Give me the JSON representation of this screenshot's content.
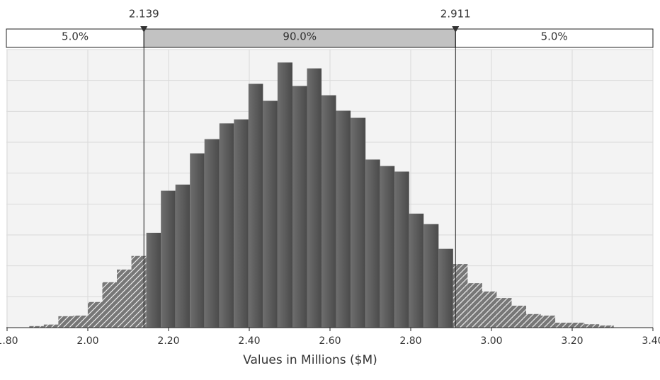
{
  "chart_data": {
    "type": "histogram",
    "xlabel": "Values in Millions ($M)",
    "bins": [
      1.855,
      1.891,
      1.927,
      1.964,
      2.0,
      2.036,
      2.072,
      2.108,
      2.145,
      2.181,
      2.217,
      2.253,
      2.289,
      2.326,
      2.362,
      2.398,
      2.434,
      2.47,
      2.507,
      2.543,
      2.579,
      2.615,
      2.651,
      2.688,
      2.724,
      2.76,
      2.796,
      2.832,
      2.869,
      2.905,
      2.941,
      2.977,
      3.013,
      3.05,
      3.086,
      3.122,
      3.158,
      3.194,
      3.231,
      3.267,
      3.303
    ],
    "values": [
      0.05,
      0.1,
      0.37,
      0.39,
      0.83,
      1.47,
      1.88,
      2.32,
      3.07,
      4.43,
      4.63,
      5.64,
      6.1,
      6.61,
      6.74,
      7.89,
      7.34,
      8.58,
      7.82,
      8.39,
      7.52,
      7.02,
      6.79,
      5.44,
      5.23,
      5.05,
      3.69,
      3.35,
      2.55,
      2.06,
      1.44,
      1.17,
      0.96,
      0.71,
      0.44,
      0.39,
      0.16,
      0.16,
      0.11,
      0.07
    ],
    "color": "#5a5a5a",
    "xlim": [
      1.8,
      3.4
    ],
    "xticks": [
      {
        "value": 1.8,
        "label": "1.80"
      },
      {
        "value": 2.0,
        "label": "2.00"
      },
      {
        "value": 2.2,
        "label": "2.20"
      },
      {
        "value": 2.4,
        "label": "2.40"
      },
      {
        "value": 2.6,
        "label": "2.60"
      },
      {
        "value": 2.8,
        "label": "2.80"
      },
      {
        "value": 3.0,
        "label": "3.00"
      },
      {
        "value": 3.2,
        "label": "3.20"
      },
      {
        "value": 3.4,
        "label": "3.40"
      }
    ],
    "ylim": [
      0,
      9
    ],
    "yticks": [
      0,
      1,
      2,
      3,
      4,
      5,
      6,
      7,
      8,
      9
    ],
    "grid": true,
    "delimiters": [
      2.139,
      2.911
    ],
    "bands": [
      {
        "value": 5,
        "label": "5.0%"
      },
      {
        "value": 90,
        "label": "90.0%"
      },
      {
        "value": 5,
        "label": "5.0%"
      }
    ]
  }
}
